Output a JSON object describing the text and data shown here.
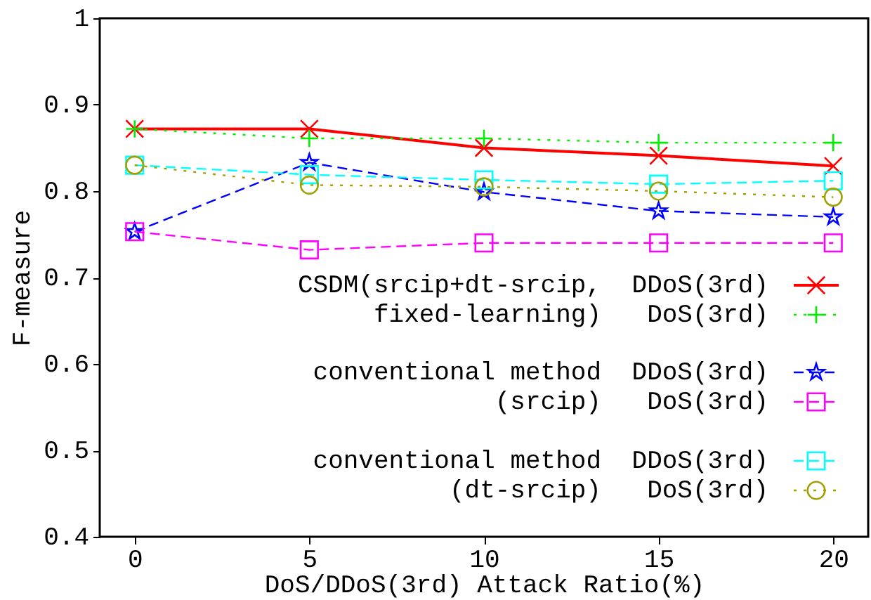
{
  "chart_data": {
    "type": "line",
    "xlabel": "DoS/DDoS(3rd) Attack Ratio(%)",
    "ylabel": "F-measure",
    "x": [
      0,
      5,
      10,
      15,
      20
    ],
    "xlim": [
      -1,
      21
    ],
    "ylim": [
      0.4,
      1
    ],
    "xticks": [
      0,
      5,
      10,
      15,
      20
    ],
    "yticks": [
      0.4,
      0.5,
      0.6,
      0.7,
      0.8,
      0.9,
      1
    ],
    "legend": "right",
    "grid": false,
    "annotations": [
      "CSDM(srcip+dt-srcip,\nfixed-learning)",
      "conventional method\n(srcip)",
      "conventional method\n(dt-srcip)"
    ],
    "series": [
      {
        "name": "DDoS(3rd)",
        "color": "#ff0000",
        "marker": "x",
        "line_style": "solid",
        "values": [
          0.872,
          0.872,
          0.85,
          0.841,
          0.829
        ]
      },
      {
        "name": "DoS(3rd)",
        "color": "#00ee00",
        "marker": "cross",
        "line_style": "dotted",
        "values": [
          0.872,
          0.861,
          0.861,
          0.856,
          0.856
        ]
      },
      {
        "name": "DDoS(3rd)",
        "color": "#0000ff",
        "marker": "star",
        "line_style": "dashed",
        "values": [
          0.753,
          0.833,
          0.799,
          0.777,
          0.77
        ]
      },
      {
        "name": "DoS(3rd)",
        "color": "#ff00ff",
        "marker": "square",
        "line_style": "dashed",
        "values": [
          0.753,
          0.732,
          0.74,
          0.74,
          0.74
        ]
      },
      {
        "name": "DDoS(3rd)",
        "color": "#00ffff",
        "marker": "square",
        "line_style": "dashed",
        "values": [
          0.83,
          0.819,
          0.813,
          0.808,
          0.812
        ]
      },
      {
        "name": "DoS(3rd)",
        "color": "#a0a000",
        "marker": "circle",
        "line_style": "dotted",
        "values": [
          0.83,
          0.807,
          0.805,
          0.8,
          0.793
        ]
      }
    ]
  }
}
